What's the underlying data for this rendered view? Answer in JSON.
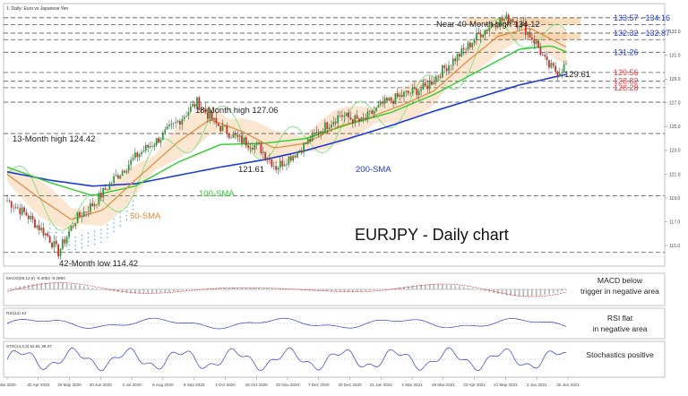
{
  "header": {
    "instrument": "1. Daily: Euro vs Japanese Yen"
  },
  "chart_data": [
    {
      "type": "candlestick",
      "title": "EURJPY - Daily chart",
      "x_labels": [
        "Mar 2020",
        "20 Apr 2020",
        "26 May 2020",
        "30 Jun 2020",
        "3 Jul 2020",
        "6 Aug 2020",
        "9 Sep 2020",
        "1 Oct 2020",
        "28 Oct 2020",
        "20 Nov 2020",
        "7 Dec 2020",
        "30 Dec 2020",
        "21 Jan 2021",
        "1 Mar 2021",
        "29 Mar 2021",
        "20 Apr 2021",
        "21 May 2021",
        "3 Jun 2021",
        "25 Jun 2021"
      ],
      "ylim": [
        113.8,
        134.9
      ],
      "y_ticks": [
        115.0,
        117.0,
        119.0,
        121.0,
        123.0,
        125.0,
        127.0,
        129.0,
        131.0,
        133.0
      ],
      "key_path": [
        [
          0,
          118.8
        ],
        [
          9,
          117.6
        ],
        [
          19,
          115.8
        ],
        [
          24,
          114.42
        ],
        [
          32,
          117.2
        ],
        [
          41,
          118.6
        ],
        [
          50,
          120.6
        ],
        [
          61,
          122.6
        ],
        [
          72,
          124.1
        ],
        [
          81,
          125.6
        ],
        [
          89,
          127.06
        ],
        [
          98,
          125.2
        ],
        [
          108,
          124.0
        ],
        [
          118,
          123.3
        ],
        [
          126,
          121.61
        ],
        [
          136,
          122.9
        ],
        [
          146,
          124.6
        ],
        [
          156,
          126.0
        ],
        [
          166,
          125.4
        ],
        [
          176,
          126.9
        ],
        [
          186,
          127.7
        ],
        [
          196,
          128.3
        ],
        [
          206,
          130.1
        ],
        [
          214,
          131.4
        ],
        [
          222,
          132.9
        ],
        [
          230,
          133.9
        ],
        [
          236,
          134.12
        ],
        [
          242,
          133.4
        ],
        [
          248,
          132.0
        ],
        [
          253,
          130.2
        ],
        [
          258,
          129.6
        ],
        [
          262,
          130.2
        ]
      ],
      "sma_200": [
        [
          0,
          121.2
        ],
        [
          20,
          120.5
        ],
        [
          40,
          120.0
        ],
        [
          60,
          120.2
        ],
        [
          80,
          120.9
        ],
        [
          100,
          121.6
        ],
        [
          120,
          122.2
        ],
        [
          140,
          123.0
        ],
        [
          160,
          124.0
        ],
        [
          180,
          125.1
        ],
        [
          200,
          126.3
        ],
        [
          220,
          127.4
        ],
        [
          240,
          128.5
        ],
        [
          262,
          129.4
        ]
      ],
      "sma_100": [
        [
          0,
          121.6
        ],
        [
          20,
          120.3
        ],
        [
          40,
          119.2
        ],
        [
          60,
          120.0
        ],
        [
          80,
          122.0
        ],
        [
          100,
          123.5
        ],
        [
          120,
          123.6
        ],
        [
          140,
          124.0
        ],
        [
          160,
          125.2
        ],
        [
          180,
          126.2
        ],
        [
          200,
          127.7
        ],
        [
          220,
          129.6
        ],
        [
          240,
          131.5
        ],
        [
          255,
          131.8
        ],
        [
          262,
          131.3
        ]
      ],
      "sma_50": [
        [
          0,
          121.0
        ],
        [
          15,
          119.0
        ],
        [
          30,
          117.2
        ],
        [
          45,
          118.0
        ],
        [
          60,
          120.5
        ],
        [
          80,
          123.7
        ],
        [
          95,
          125.6
        ],
        [
          110,
          124.6
        ],
        [
          125,
          123.2
        ],
        [
          140,
          123.6
        ],
        [
          155,
          125.0
        ],
        [
          170,
          125.8
        ],
        [
          185,
          126.8
        ],
        [
          200,
          128.0
        ],
        [
          215,
          130.4
        ],
        [
          230,
          132.6
        ],
        [
          245,
          133.3
        ],
        [
          262,
          131.7
        ]
      ],
      "levels": [
        {
          "value": 134.16,
          "label": "133.57 - 134.16",
          "color": "#1f3bd6"
        },
        {
          "value": 133.57,
          "label": "",
          "color": "#1f3bd6"
        },
        {
          "value": 132.87,
          "label": "132.32 - 132.87",
          "color": "#1f3bd6"
        },
        {
          "value": 132.32,
          "label": "",
          "color": "#1f3bd6"
        },
        {
          "value": 131.26,
          "label": "131.26",
          "color": "#1f3bd6"
        },
        {
          "value": 129.56,
          "label": "129.56",
          "color": "#e53b3b"
        },
        {
          "value": 128.82,
          "label": "128.82",
          "color": "#e53b3b"
        },
        {
          "value": 128.28,
          "label": "128.28",
          "color": "#e53b3b"
        },
        {
          "value": 127.06,
          "label": "",
          "color": "#333333"
        },
        {
          "value": 124.42,
          "label": "",
          "color": "#333333"
        },
        {
          "value": 119.2,
          "label": "",
          "color": "#333333"
        },
        {
          "value": 114.42,
          "label": "",
          "color": "#333333"
        }
      ],
      "annotations": [
        {
          "text": "Near 40-Month high 134.12",
          "color": "#222222"
        },
        {
          "text": "18-Month high 127.06",
          "color": "#222222"
        },
        {
          "text": "13-Month high 124.42",
          "color": "#222222"
        },
        {
          "text": "121.61",
          "color": "#222222"
        },
        {
          "text": "42-Month low 114.42",
          "color": "#222222"
        },
        {
          "text": "129.61",
          "color": "#222222"
        },
        {
          "text": "200-SMA",
          "color": "#1f3bd6"
        },
        {
          "text": "100-SMA",
          "color": "#2ecc2e"
        },
        {
          "text": "50-SMA",
          "color": "#e08a3a"
        }
      ]
    },
    {
      "type": "line",
      "name": "MACD",
      "header": "MACD(26,12,9) -0.4053 -0.2890",
      "annotation": "MACD below\ntrigger in negative area",
      "ylim": [
        -1.5,
        1.5
      ]
    },
    {
      "type": "line",
      "name": "RSI",
      "header": "RSI(14) 44",
      "annotation": "RSI flat\nin negative area",
      "ylim": [
        0,
        100
      ]
    },
    {
      "type": "line",
      "name": "Stochastics",
      "header": "STO(14,3,3) 52.81 39.07",
      "annotation": "Stochastics positive",
      "ylim": [
        0,
        100
      ]
    }
  ],
  "colors": {
    "candle_up": "#2e9c3a",
    "candle_down": "#d02c2c",
    "sma200": "#1f3bd6",
    "sma100": "#2ecc2e",
    "sma50": "#e08a3a",
    "cloud": "#f5c89a",
    "cloud_dots": "#4aa0e8",
    "zone": "#f7d4a8",
    "kijun": "#7fe07f"
  }
}
